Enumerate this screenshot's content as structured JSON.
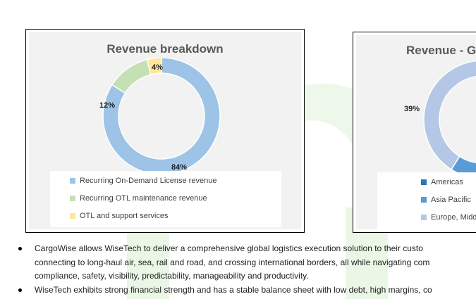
{
  "chart_data": [
    {
      "type": "pie",
      "title": "Revenue breakdown",
      "categories": [
        "Recurring On-Demand License revenue",
        "Recurring OTL maintenance revenue",
        "OTL and support services"
      ],
      "values": [
        84,
        12,
        4
      ],
      "labels": [
        "84%",
        "12%",
        "4%"
      ],
      "colors": [
        "#9dc3e6",
        "#c5e0b4",
        "#ffe699"
      ],
      "legend_position": "bottom"
    },
    {
      "type": "pie",
      "title": "Revenue - Ge",
      "categories": [
        "Americas",
        "Asia Pacific",
        "Europe, Midd"
      ],
      "visible_labels": [
        "39%"
      ],
      "colors": [
        "#2e75b6",
        "#5b9bd5",
        "#b4c7e7"
      ],
      "legend_position": "bottom"
    }
  ],
  "bullets": [
    {
      "lines": [
        "CargoWise allows WiseTech to deliver a comprehensive global logistics execution solution to their custo",
        "connecting to long-haul air, sea, rail and road, and crossing international borders, all while navigating com",
        "compliance, safety, visibility, predictability, manageability and productivity."
      ]
    },
    {
      "lines": [
        "WiseTech exhibits strong financial strength and has a stable balance sheet with low debt, high margins, co"
      ]
    }
  ]
}
